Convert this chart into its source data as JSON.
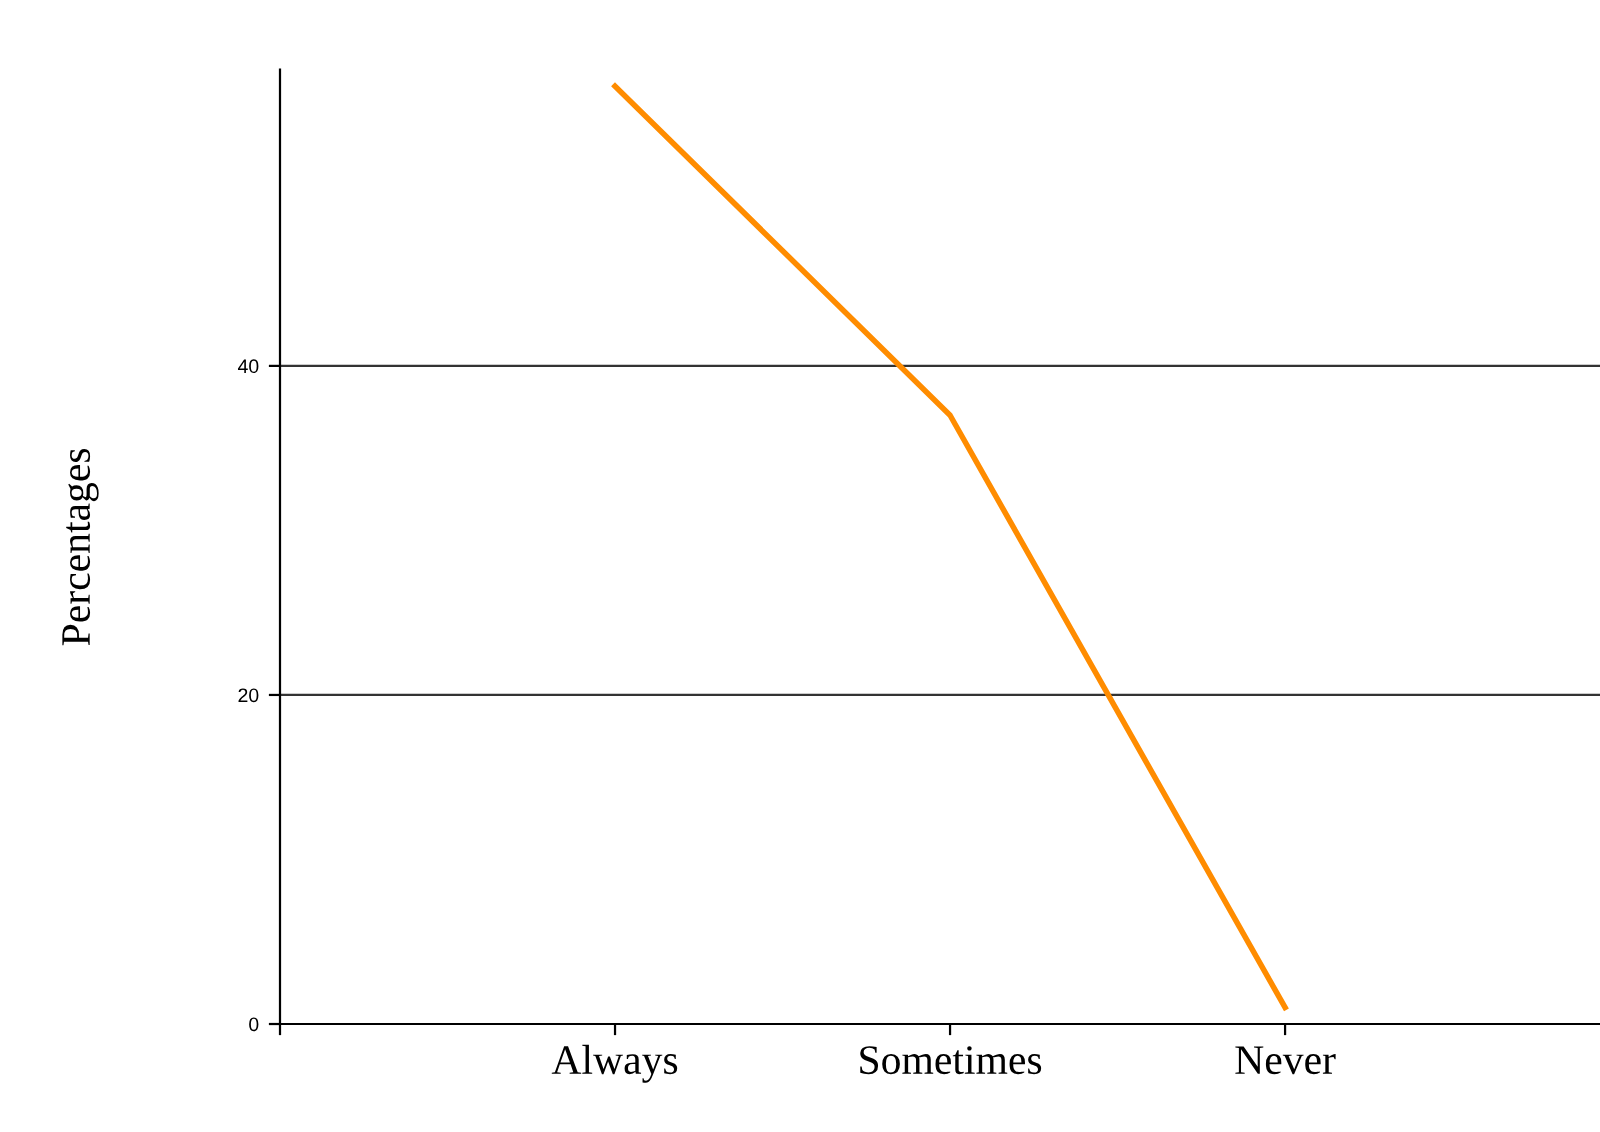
{
  "chart_data": {
    "type": "line",
    "ylabel": "Percentages",
    "categories": [
      "Always",
      "Sometimes",
      "Never"
    ],
    "series": [
      {
        "color": "#ff8c00",
        "values": [
          57,
          37,
          1
        ]
      }
    ],
    "ylim": [
      0,
      58
    ],
    "yticks": [
      0,
      20,
      40
    ],
    "grid": "y",
    "marker": "none",
    "line_style": "solid"
  }
}
